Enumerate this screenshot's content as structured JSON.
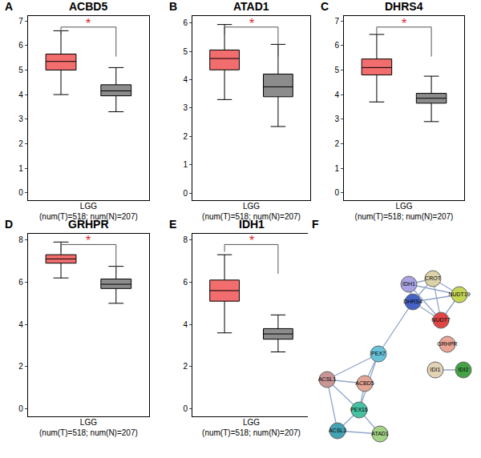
{
  "chart_data": [
    {
      "type": "box",
      "panel": "A",
      "title": "ACBD5",
      "xlabel": [
        "LGG",
        "(num(T)=518; num(N)=207)"
      ],
      "ylim": [
        -0.3,
        7.2
      ],
      "yticks": [
        0,
        1,
        2,
        3,
        4,
        5,
        6,
        7
      ],
      "boxes": [
        {
          "color": "#f26d6d",
          "q1": 5.0,
          "median": 5.35,
          "q3": 5.65,
          "lowerfence": 4.0,
          "upperfence": 6.6
        },
        {
          "color": "#8c8c8c",
          "q1": 3.95,
          "median": 4.15,
          "q3": 4.4,
          "lowerfence": 3.3,
          "upperfence": 5.1
        }
      ],
      "annotations": [
        {
          "text": "*",
          "color": "#e41a1c"
        }
      ]
    },
    {
      "type": "box",
      "panel": "B",
      "title": "ATAD1",
      "xlabel": [
        "LGG",
        "(num(T)=518; num(N)=207)"
      ],
      "ylim": [
        -0.25,
        6.25
      ],
      "yticks": [
        0,
        1,
        2,
        3,
        4,
        5,
        6
      ],
      "boxes": [
        {
          "color": "#f26d6d",
          "q1": 4.35,
          "median": 4.75,
          "q3": 5.05,
          "lowerfence": 3.3,
          "upperfence": 5.95
        },
        {
          "color": "#8c8c8c",
          "q1": 3.4,
          "median": 3.75,
          "q3": 4.2,
          "lowerfence": 2.35,
          "upperfence": 5.25
        }
      ],
      "annotations": [
        {
          "text": "*",
          "color": "#e41a1c"
        }
      ]
    },
    {
      "type": "box",
      "panel": "C",
      "title": "DHRS4",
      "xlabel": [
        "LGG",
        "(num(T)=518; num(N)=207)"
      ],
      "ylim": [
        -0.3,
        7.2
      ],
      "yticks": [
        0,
        1,
        2,
        3,
        4,
        5,
        6,
        7
      ],
      "boxes": [
        {
          "color": "#f26d6d",
          "q1": 4.8,
          "median": 5.1,
          "q3": 5.45,
          "lowerfence": 3.7,
          "upperfence": 6.45
        },
        {
          "color": "#8c8c8c",
          "q1": 3.65,
          "median": 3.85,
          "q3": 4.05,
          "lowerfence": 2.9,
          "upperfence": 4.75
        }
      ],
      "annotations": [
        {
          "text": "*",
          "color": "#e41a1c"
        }
      ]
    },
    {
      "type": "box",
      "panel": "D",
      "title": "GRHPR",
      "xlabel": [
        "LGG",
        "(num(T)=518; num(N)=207)"
      ],
      "ylim": [
        -0.35,
        8.3
      ],
      "yticks": [
        0,
        2,
        4,
        6,
        8
      ],
      "boxes": [
        {
          "color": "#f26d6d",
          "q1": 6.9,
          "median": 7.1,
          "q3": 7.3,
          "lowerfence": 6.2,
          "upperfence": 7.9
        },
        {
          "color": "#8c8c8c",
          "q1": 5.7,
          "median": 5.9,
          "q3": 6.15,
          "lowerfence": 5.0,
          "upperfence": 6.75
        }
      ],
      "annotations": [
        {
          "text": "*",
          "color": "#e41a1c"
        }
      ]
    },
    {
      "type": "box",
      "panel": "E",
      "title": "IDH1",
      "xlabel": [
        "LGG",
        "(num(T)=518; num(N)=207)"
      ],
      "ylim": [
        -0.35,
        8.3
      ],
      "yticks": [
        0,
        2,
        4,
        6,
        8
      ],
      "boxes": [
        {
          "color": "#f26d6d",
          "q1": 5.1,
          "median": 5.6,
          "q3": 6.1,
          "lowerfence": 3.6,
          "upperfence": 7.3
        },
        {
          "color": "#8c8c8c",
          "q1": 3.3,
          "median": 3.55,
          "q3": 3.8,
          "lowerfence": 2.7,
          "upperfence": 4.45
        }
      ],
      "annotations": [
        {
          "text": "*",
          "color": "#e41a1c"
        }
      ]
    }
  ],
  "network": {
    "type": "network",
    "panel": "F",
    "nodes": [
      {
        "label": "IDH1",
        "color": "#a9a2e3"
      },
      {
        "label": "CROT",
        "color": "#dcd3a8"
      },
      {
        "label": "NUDT19",
        "color": "#c5d655"
      },
      {
        "label": "DHRS4",
        "color": "#4463c4"
      },
      {
        "label": "NUDT7",
        "color": "#e04545"
      },
      {
        "label": "GRHPR",
        "color": "#e9a595"
      },
      {
        "label": "IDI1",
        "color": "#e2d3b5"
      },
      {
        "label": "IDI2",
        "color": "#45a345"
      },
      {
        "label": "PEX7",
        "color": "#66c3da"
      },
      {
        "label": "ACSL1",
        "color": "#c99595"
      },
      {
        "label": "ACBD5",
        "color": "#e3a595"
      },
      {
        "label": "PEX16",
        "color": "#45c2a2"
      },
      {
        "label": "ACSL3",
        "color": "#43a3b3"
      },
      {
        "label": "ATAD1",
        "color": "#a3d385"
      }
    ],
    "edges": [
      [
        "IDH1",
        "CROT"
      ],
      [
        "IDH1",
        "DHRS4"
      ],
      [
        "IDH1",
        "NUDT19"
      ],
      [
        "IDH1",
        "NUDT7"
      ],
      [
        "CROT",
        "DHRS4"
      ],
      [
        "CROT",
        "NUDT19"
      ],
      [
        "CROT",
        "NUDT7"
      ],
      [
        "DHRS4",
        "NUDT19"
      ],
      [
        "DHRS4",
        "NUDT7"
      ],
      [
        "NUDT19",
        "NUDT7"
      ],
      [
        "DHRS4",
        "PEX7"
      ],
      [
        "PEX7",
        "ACBD5"
      ],
      [
        "PEX7",
        "PEX16"
      ],
      [
        "PEX7",
        "ACSL1"
      ],
      [
        "ACBD5",
        "ACSL1"
      ],
      [
        "ACBD5",
        "PEX16"
      ],
      [
        "ACSL1",
        "PEX16"
      ],
      [
        "ACSL1",
        "ACSL3"
      ],
      [
        "ACSL3",
        "PEX16"
      ],
      [
        "ACSL3",
        "ATAD1"
      ],
      [
        "PEX16",
        "ATAD1"
      ],
      [
        "IDI1",
        "IDI2"
      ]
    ]
  }
}
